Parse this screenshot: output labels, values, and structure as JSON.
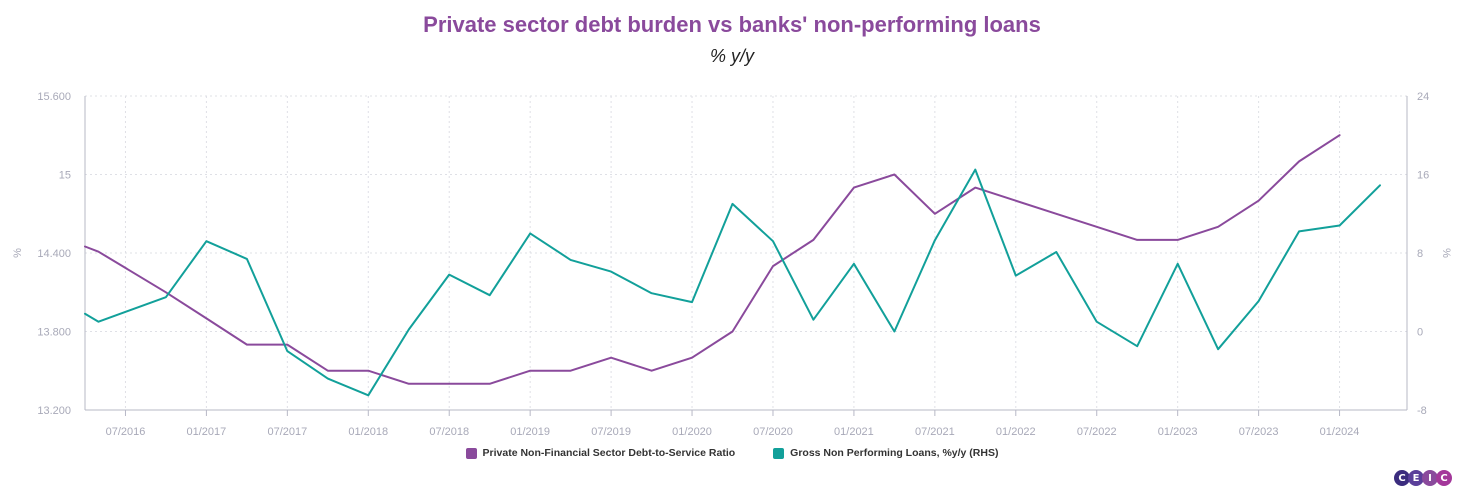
{
  "title": "Private sector debt burden vs banks' non-performing loans",
  "subtitle": "% y/y",
  "logo_text": "CEIC",
  "colors": {
    "title": "#8a4a9c",
    "series1": "#8a4a9c",
    "series2": "#12a09a",
    "grid": "#dfe0e6",
    "axis": "#b7b8c6",
    "tick": "#a8a9b8",
    "logo": [
      "#3b2c7e",
      "#5a3f9a",
      "#8a4a9c",
      "#a3379a"
    ]
  },
  "chart_data": {
    "type": "line",
    "title": "Private sector debt burden vs banks' non-performing loans",
    "subtitle": "% y/y",
    "xlabel": "",
    "ylabel": "%",
    "y2label": "%",
    "x_tick_labels": [
      "07/2016",
      "01/2017",
      "07/2017",
      "01/2018",
      "07/2018",
      "01/2019",
      "07/2019",
      "01/2020",
      "07/2020",
      "01/2021",
      "07/2021",
      "01/2022",
      "07/2022",
      "01/2023",
      "07/2023",
      "01/2024"
    ],
    "ylim": [
      13.2,
      15.6
    ],
    "y_ticks": [
      "13.200",
      "13.800",
      "14.400",
      "15",
      "15.600"
    ],
    "y2lim": [
      -8,
      24
    ],
    "y2_ticks": [
      "-8",
      "0",
      "8",
      "16",
      "24"
    ],
    "grid": true,
    "legend_position": "bottom",
    "series": [
      {
        "name": "Private Non-Financial Sector Debt-to-Service Ratio",
        "axis": "left",
        "x": [
          "2016-04",
          "2016-05",
          "2016-10",
          "2017-01",
          "2017-04",
          "2017-07",
          "2017-10",
          "2018-01",
          "2018-04",
          "2018-07",
          "2018-10",
          "2019-01",
          "2019-04",
          "2019-07",
          "2019-10",
          "2020-01",
          "2020-04",
          "2020-07",
          "2020-10",
          "2021-01",
          "2021-04",
          "2021-07",
          "2021-10",
          "2022-01",
          "2022-04",
          "2022-07",
          "2022-10",
          "2023-01",
          "2023-04",
          "2023-07",
          "2023-10",
          "2024-01"
        ],
        "values": [
          14.45,
          14.41,
          14.1,
          13.9,
          13.7,
          13.7,
          13.5,
          13.5,
          13.4,
          13.4,
          13.4,
          13.5,
          13.5,
          13.6,
          13.5,
          13.6,
          13.8,
          14.3,
          14.5,
          14.9,
          15.0,
          14.7,
          14.9,
          14.8,
          14.7,
          14.6,
          14.5,
          14.5,
          14.6,
          14.8,
          15.1,
          15.3
        ]
      },
      {
        "name": "Gross Non Performing Loans, %y/y (RHS)",
        "axis": "right",
        "x": [
          "2016-04",
          "2016-05",
          "2016-10",
          "2017-01",
          "2017-04",
          "2017-07",
          "2017-10",
          "2018-01",
          "2018-04",
          "2018-07",
          "2018-10",
          "2019-01",
          "2019-04",
          "2019-07",
          "2019-10",
          "2020-01",
          "2020-04",
          "2020-07",
          "2020-10",
          "2021-01",
          "2021-04",
          "2021-07",
          "2021-10",
          "2022-01",
          "2022-04",
          "2022-07",
          "2022-10",
          "2023-01",
          "2023-04",
          "2023-07",
          "2023-10",
          "2024-01",
          "2024-04"
        ],
        "values": [
          1.8,
          1.0,
          3.5,
          9.2,
          7.4,
          -2.0,
          -4.8,
          -6.5,
          0.2,
          5.8,
          3.7,
          10.0,
          7.3,
          6.1,
          3.9,
          3.0,
          13.0,
          9.2,
          1.2,
          6.9,
          0.0,
          9.3,
          16.5,
          5.7,
          8.1,
          1.0,
          -1.5,
          6.9,
          -1.8,
          3.1,
          10.2,
          10.8,
          14.9
        ]
      }
    ]
  }
}
